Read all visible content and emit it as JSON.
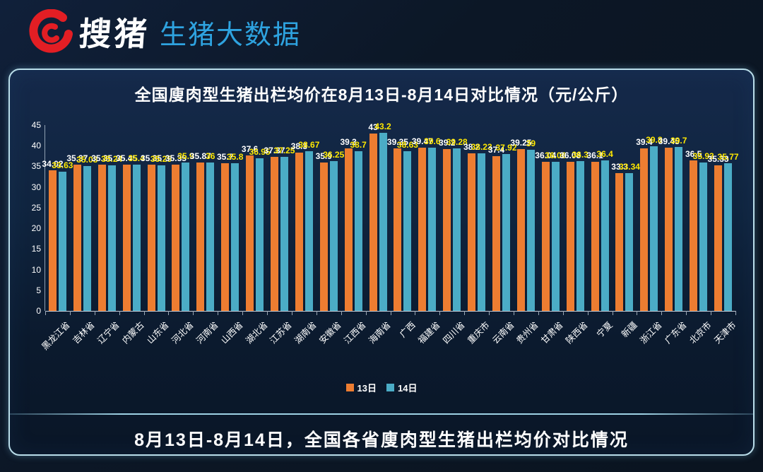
{
  "header": {
    "logo_text": "搜猪",
    "logo_subtitle": "生猪大数据",
    "logo_color": "#e31e24",
    "subtitle_color": "#2ea3e0"
  },
  "chart": {
    "title": "全国廋肉型生猪出栏均价在8月13日-8月14日对比情况（元/公斤）",
    "legend": [
      {
        "label": "13日",
        "color": "#ed7d31"
      },
      {
        "label": "14日",
        "color": "#4bacc6"
      }
    ],
    "y_ticks": [
      0,
      5,
      10,
      15,
      20,
      25,
      30,
      35,
      40,
      45
    ]
  },
  "chart_data": {
    "type": "bar",
    "title": "全国廋肉型生猪出栏均价在8月13日-8月14日对比情况（元/公斤）",
    "categories": [
      "黑龙江省",
      "吉林省",
      "辽宁省",
      "内蒙古",
      "山东省",
      "河北省",
      "河南省",
      "山西省",
      "湖北省",
      "江苏省",
      "湖南省",
      "安徽省",
      "江西省",
      "海南省",
      "广西",
      "福建省",
      "四川省",
      "重庆市",
      "云南省",
      "贵州省",
      "甘肃省",
      "陕西省",
      "宁夏",
      "新疆",
      "浙江省",
      "广东省",
      "北京市",
      "天津市"
    ],
    "series": [
      {
        "name": "13日",
        "color": "#ed7d31",
        "label_color": "#ffffff",
        "values": [
          34.02,
          35.37,
          35.35,
          35.45,
          35.35,
          35.35,
          35.87,
          35.7,
          37.6,
          37.37,
          38.3,
          35.9,
          39.3,
          43,
          39.35,
          39.47,
          39.2,
          38.2,
          37.4,
          39.25,
          36.04,
          36.08,
          36.1,
          33.3,
          39.4,
          39.45,
          36.5,
          35.33
        ]
      },
      {
        "name": "14日",
        "color": "#4bacc6",
        "label_color": "#ffe800",
        "values": [
          33.63,
          35.03,
          35.24,
          35.4,
          35.25,
          35.9,
          36,
          35.8,
          36.95,
          37.25,
          38.67,
          36.25,
          38.7,
          43.2,
          38.63,
          39.6,
          39.28,
          38.23,
          37.92,
          39,
          36.06,
          36.3,
          36.4,
          33.34,
          39.8,
          39.7,
          35.93,
          35.77
        ]
      }
    ],
    "xlabel": "",
    "ylabel": "",
    "ylim": [
      0,
      45
    ],
    "grid": false,
    "legend_position": "bottom"
  },
  "footer": {
    "banner": "8月13日-8月14日，全国各省廋肉型生猪出栏均价对比情况"
  }
}
